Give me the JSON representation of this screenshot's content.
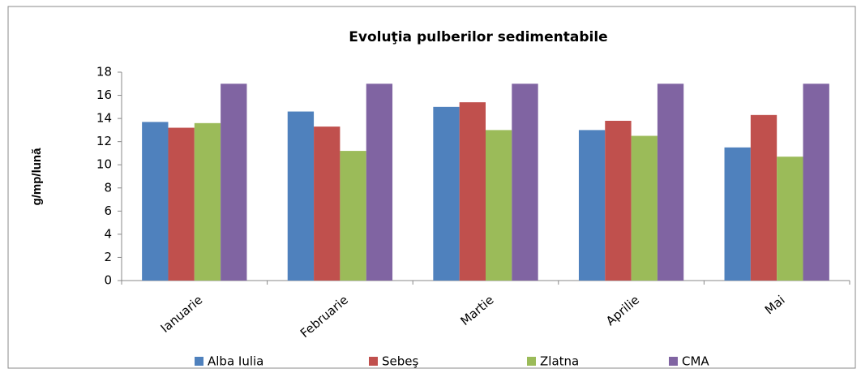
{
  "chart_data": {
    "type": "bar",
    "title": "Evoluţia pulberilor sedimentabile",
    "y_label": "g/mp/lună",
    "categories": [
      "Ianuarie",
      "Februarie",
      "Martie",
      "Aprilie",
      "Mai"
    ],
    "series": [
      {
        "name": "Alba Iulia",
        "color": "#4f81bd",
        "values": [
          13.7,
          14.6,
          15.0,
          13.0,
          11.5
        ]
      },
      {
        "name": "Sebeş",
        "color": "#c0504d",
        "values": [
          13.2,
          13.3,
          15.4,
          13.8,
          14.3
        ]
      },
      {
        "name": "Zlatna",
        "color": "#9bbb59",
        "values": [
          13.6,
          11.2,
          13.0,
          12.5,
          10.7
        ]
      },
      {
        "name": "CMA",
        "color": "#8064a2",
        "values": [
          17,
          17,
          17,
          17,
          17
        ]
      }
    ],
    "ylim": [
      0,
      18
    ],
    "yticks": [
      0,
      2,
      4,
      6,
      8,
      10,
      12,
      14,
      16,
      18
    ],
    "grid": false,
    "legend": "bottom"
  }
}
